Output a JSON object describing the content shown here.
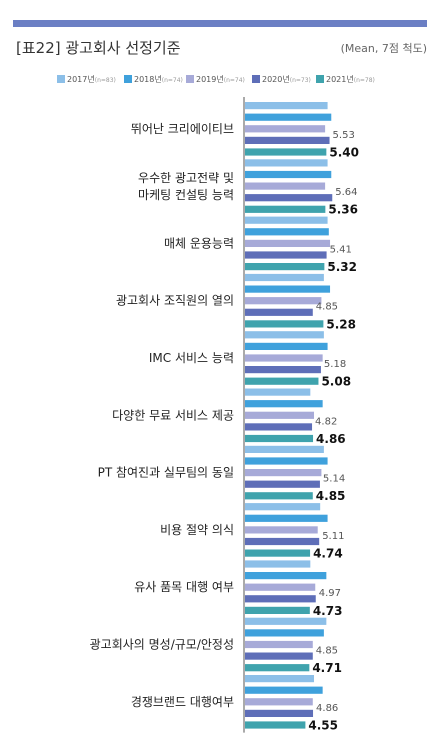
{
  "header": {
    "title": "[표22] 광고회사 선정기준",
    "subtitle": "(Mean, 7점 척도)"
  },
  "chart_data": {
    "type": "bar",
    "orientation": "horizontal",
    "title": "[표22] 광고회사 선정기준",
    "subtitle": "(Mean, 7점 척도)",
    "xlim": [
      0,
      7
    ],
    "grid": false,
    "legend_position": "top",
    "categories": [
      "뛰어난 크리에이티브",
      "우수한 광고전략 및\n마케팅 컨설팅 능력",
      "매체 운용능력",
      "광고회사 조직원의 열의",
      "IMC 서비스 능력",
      "다양한 무료 서비스 제공",
      "PT 참여진과 실무팀의 동일",
      "비용 절약 의식",
      "유사 품목 대행 여부",
      "광고회사의 명성/규모/안정성",
      "경쟁브랜드 대행여부"
    ],
    "series": [
      {
        "name": "2017년",
        "n": "(n=83)",
        "color": "#8cbfe8",
        "values": [
          5.45,
          5.45,
          5.45,
          5.3,
          5.3,
          4.75,
          5.3,
          5.15,
          4.75,
          5.4,
          4.9
        ]
      },
      {
        "name": "2018년",
        "n": "(n=74)",
        "color": "#3fa1dc",
        "values": [
          5.6,
          5.6,
          5.5,
          5.55,
          5.45,
          5.25,
          5.45,
          5.45,
          5.4,
          5.3,
          5.25
        ]
      },
      {
        "name": "2019년",
        "n": "(n=74)",
        "color": "#a7aad8",
        "values": [
          5.35,
          5.35,
          5.55,
          5.2,
          5.25,
          4.9,
          5.2,
          5.05,
          4.95,
          4.85,
          4.85
        ]
      },
      {
        "name": "2020년",
        "n": "(n=73)",
        "color": "#5e6eb8",
        "values": [
          5.53,
          5.64,
          5.41,
          4.85,
          5.18,
          4.82,
          5.14,
          5.11,
          4.97,
          4.85,
          4.86
        ]
      },
      {
        "name": "2021년",
        "n": "(n=78)",
        "color": "#3fa3ad",
        "values": [
          5.4,
          5.36,
          5.32,
          5.28,
          5.08,
          4.86,
          4.85,
          4.74,
          4.73,
          4.71,
          4.55
        ]
      }
    ],
    "labeled_series": [
      "2020년",
      "2021년"
    ]
  }
}
